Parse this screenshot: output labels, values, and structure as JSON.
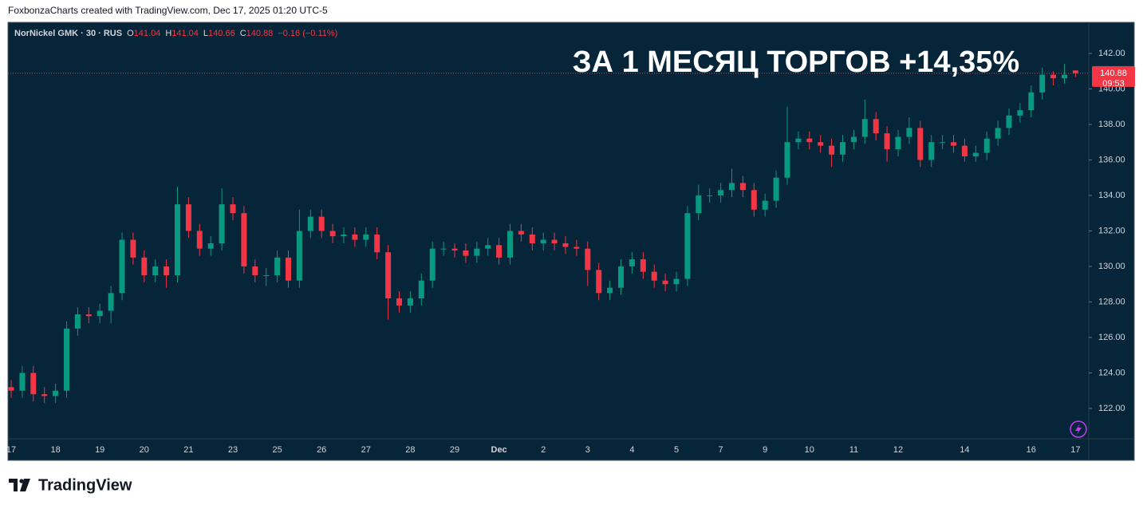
{
  "header": "FoxbonzaCharts created with TradingView.com, Dec 17, 2025 01:20 UTC-5",
  "footer": "TradingView",
  "chart_data": {
    "type": "candlestick",
    "symbol": "NorNickel GMK · 30 · RUS",
    "ohlc_labels": [
      "O",
      "H",
      "L",
      "C"
    ],
    "change": "−0.16 (−0.11%)",
    "annotation": "ЗА 1 МЕСЯЦ ТОРГОВ +14,35%",
    "countdown": "09:53",
    "up_color": "#089981",
    "down_color": "#f23645",
    "categories": [
      "17",
      null,
      null,
      null,
      "18",
      null,
      null,
      null,
      "19",
      null,
      null,
      null,
      "20",
      null,
      null,
      null,
      "21",
      null,
      null,
      null,
      "23",
      null,
      null,
      null,
      "25",
      null,
      null,
      null,
      "26",
      null,
      null,
      null,
      "27",
      null,
      null,
      null,
      "28",
      null,
      null,
      null,
      "29",
      null,
      null,
      null,
      "Dec",
      null,
      null,
      null,
      "2",
      null,
      null,
      null,
      "3",
      null,
      null,
      null,
      "4",
      null,
      null,
      null,
      "5",
      null,
      null,
      null,
      "7",
      null,
      null,
      null,
      "9",
      null,
      null,
      null,
      "10",
      null,
      null,
      null,
      "11",
      null,
      null,
      null,
      "12",
      null,
      null,
      null,
      null,
      null,
      "14",
      null,
      null,
      null,
      null,
      null,
      "16",
      null,
      null,
      null,
      "17"
    ],
    "open": [
      123.2,
      123.0,
      124.0,
      122.8,
      122.7,
      123.0,
      126.5,
      127.3,
      127.2,
      127.5,
      128.5,
      131.5,
      130.5,
      129.5,
      130.0,
      129.5,
      133.5,
      132.0,
      131.0,
      131.3,
      133.5,
      133.0,
      130.0,
      129.5,
      129.5,
      130.5,
      129.2,
      132.0,
      132.8,
      132.0,
      131.7,
      131.8,
      131.5,
      131.8,
      130.8,
      128.2,
      127.8,
      128.2,
      129.2,
      131.0,
      131.0,
      130.9,
      130.6,
      131.0,
      131.2,
      130.5,
      132.0,
      131.8,
      131.3,
      131.5,
      131.3,
      131.1,
      131.0,
      129.8,
      128.5,
      128.8,
      130.0,
      130.4,
      129.7,
      129.2,
      129.0,
      129.3,
      133.0,
      134.0,
      134.0,
      134.3,
      134.7,
      134.3,
      133.2,
      133.7,
      135.0,
      137.0,
      137.2,
      137.0,
      136.8,
      136.3,
      137.0,
      137.3,
      138.3,
      137.5,
      136.6,
      137.3,
      137.8,
      136.0,
      137.0,
      137.0,
      136.8,
      136.2,
      136.4,
      137.2,
      137.8,
      138.5,
      138.8,
      139.8,
      140.8,
      140.6,
      141.04
    ],
    "high": [
      123.6,
      124.4,
      124.4,
      123.2,
      123.4,
      126.9,
      127.7,
      127.7,
      127.9,
      128.9,
      131.9,
      131.9,
      130.9,
      130.4,
      130.4,
      134.5,
      133.9,
      132.4,
      131.7,
      134.4,
      133.9,
      133.4,
      130.4,
      129.9,
      130.9,
      130.9,
      133.2,
      133.2,
      133.2,
      132.4,
      132.2,
      132.2,
      132.2,
      132.2,
      131.2,
      128.6,
      128.6,
      129.6,
      131.4,
      131.4,
      131.3,
      131.3,
      131.4,
      131.6,
      131.6,
      132.4,
      132.4,
      132.2,
      131.9,
      131.9,
      131.7,
      131.5,
      131.4,
      130.2,
      129.2,
      130.4,
      130.8,
      130.8,
      130.1,
      129.6,
      129.7,
      133.4,
      134.6,
      134.4,
      134.7,
      135.5,
      135.1,
      134.7,
      134.1,
      135.4,
      139.0,
      137.6,
      137.6,
      137.4,
      137.2,
      137.4,
      137.7,
      139.4,
      138.7,
      137.9,
      137.7,
      138.4,
      138.2,
      137.4,
      137.4,
      137.4,
      137.2,
      136.8,
      137.6,
      138.2,
      138.9,
      139.2,
      140.2,
      141.2,
      141.0,
      141.4,
      141.04
    ],
    "low": [
      122.6,
      122.6,
      122.4,
      122.3,
      122.3,
      122.6,
      126.1,
      126.8,
      126.8,
      126.8,
      128.1,
      130.1,
      129.1,
      129.1,
      128.8,
      129.1,
      131.6,
      130.6,
      130.6,
      130.9,
      132.6,
      129.6,
      129.1,
      128.9,
      129.1,
      128.8,
      128.8,
      131.6,
      131.6,
      131.3,
      131.3,
      131.1,
      131.1,
      130.4,
      127.0,
      127.4,
      127.4,
      127.8,
      128.8,
      130.6,
      130.5,
      130.2,
      130.2,
      130.6,
      130.1,
      130.1,
      131.4,
      130.9,
      130.9,
      130.9,
      130.7,
      130.6,
      128.9,
      128.1,
      128.1,
      128.4,
      129.6,
      129.3,
      128.8,
      128.6,
      128.6,
      128.9,
      132.6,
      133.6,
      133.6,
      133.9,
      133.9,
      132.8,
      132.8,
      133.3,
      134.6,
      136.6,
      136.6,
      136.4,
      135.6,
      135.9,
      136.6,
      136.9,
      137.1,
      135.9,
      136.2,
      136.9,
      135.6,
      135.6,
      136.6,
      136.4,
      135.9,
      135.9,
      136.0,
      136.8,
      137.4,
      138.1,
      138.4,
      139.4,
      140.2,
      140.3,
      140.66
    ],
    "close": [
      123.0,
      124.0,
      122.8,
      122.7,
      123.0,
      126.5,
      127.3,
      127.2,
      127.5,
      128.5,
      131.5,
      130.5,
      129.5,
      130.0,
      129.5,
      133.5,
      132.0,
      131.0,
      131.3,
      133.5,
      133.0,
      130.0,
      129.5,
      129.5,
      130.5,
      129.2,
      132.0,
      132.8,
      132.0,
      131.7,
      131.8,
      131.5,
      131.8,
      130.8,
      128.2,
      127.8,
      128.2,
      129.2,
      131.0,
      131.0,
      130.9,
      130.6,
      131.0,
      131.2,
      130.5,
      132.0,
      131.8,
      131.3,
      131.5,
      131.3,
      131.1,
      131.0,
      129.8,
      128.5,
      128.8,
      130.0,
      130.4,
      129.7,
      129.2,
      129.0,
      129.3,
      133.0,
      134.0,
      134.0,
      134.3,
      134.7,
      134.3,
      133.2,
      133.7,
      135.0,
      137.0,
      137.2,
      137.0,
      136.8,
      136.3,
      137.0,
      137.3,
      138.3,
      137.5,
      136.6,
      137.3,
      137.8,
      136.0,
      137.0,
      137.0,
      136.8,
      136.2,
      136.4,
      137.2,
      137.8,
      138.5,
      138.8,
      139.8,
      140.8,
      140.6,
      140.8,
      140.88
    ],
    "ylim": [
      120.29,
      143.75
    ],
    "yticks": [
      {
        "value": 122,
        "label": "122.00"
      },
      {
        "value": 124,
        "label": "124.00"
      },
      {
        "value": 126,
        "label": "126.00"
      },
      {
        "value": 128,
        "label": "128.00"
      },
      {
        "value": 130,
        "label": "130.00"
      },
      {
        "value": 132,
        "label": "132.00"
      },
      {
        "value": 134,
        "label": "134.00"
      },
      {
        "value": 136,
        "label": "136.00"
      },
      {
        "value": 138,
        "label": "138.00"
      },
      {
        "value": 140,
        "label": "140.00"
      },
      {
        "value": 142,
        "label": "142.00"
      }
    ],
    "last_price_label": "140.88"
  }
}
